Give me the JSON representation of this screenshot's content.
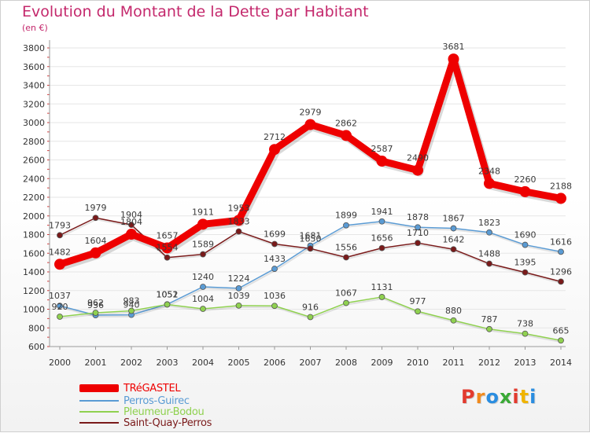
{
  "title": "Evolution du Montant de la Dette par Habitant",
  "subtitle": "(en €)",
  "logo": {
    "text": "Proxiti",
    "colors": [
      "#e23a2e",
      "#f08a1d",
      "#2a8de0",
      "#39a935",
      "#e23a2e",
      "#f0b400",
      "#2a8de0"
    ]
  },
  "colors": {
    "title": "#c4286c",
    "axis_text": "#333333",
    "grid": "#e6e6e6",
    "value_label": "#3a3a3a"
  },
  "chart_data": {
    "type": "line",
    "x": [
      "2000",
      "2001",
      "2002",
      "2003",
      "2004",
      "2005",
      "2006",
      "2007",
      "2008",
      "2009",
      "2010",
      "2011",
      "2012",
      "2013",
      "2014"
    ],
    "ylim": [
      600,
      3800
    ],
    "yticks": [
      600,
      800,
      1000,
      1200,
      1400,
      1600,
      1800,
      2000,
      2200,
      2400,
      2600,
      2800,
      3000,
      3200,
      3400,
      3600,
      3800
    ],
    "grid": true,
    "legend_position": "bottom-left",
    "series": [
      {
        "name": "TRéGASTEL",
        "color": "#ee0000",
        "style": "bold",
        "values": [
          1482,
          1604,
          1804,
          1657,
          1911,
          1953,
          2712,
          2979,
          2862,
          2587,
          2490,
          3681,
          2348,
          2260,
          2188
        ]
      },
      {
        "name": "Perros-Guirec",
        "color": "#5a9bd4",
        "style": "thin",
        "values": [
          1037,
          936,
          940,
          1052,
          1240,
          1224,
          1433,
          1681,
          1899,
          1941,
          1878,
          1867,
          1823,
          1690,
          1616
        ]
      },
      {
        "name": "Pleumeur-Bodou",
        "color": "#8fd14f",
        "style": "thin",
        "values": [
          920,
          962,
          983,
          1051,
          1004,
          1039,
          1036,
          916,
          1067,
          1131,
          977,
          880,
          787,
          738,
          665
        ]
      },
      {
        "name": "Saint-Quay-Perros",
        "color": "#7a1a1a",
        "style": "thin",
        "values": [
          1793,
          1979,
          1904,
          1554,
          1589,
          1833,
          1699,
          1650,
          1556,
          1656,
          1710,
          1642,
          1488,
          1395,
          1296
        ]
      }
    ]
  }
}
